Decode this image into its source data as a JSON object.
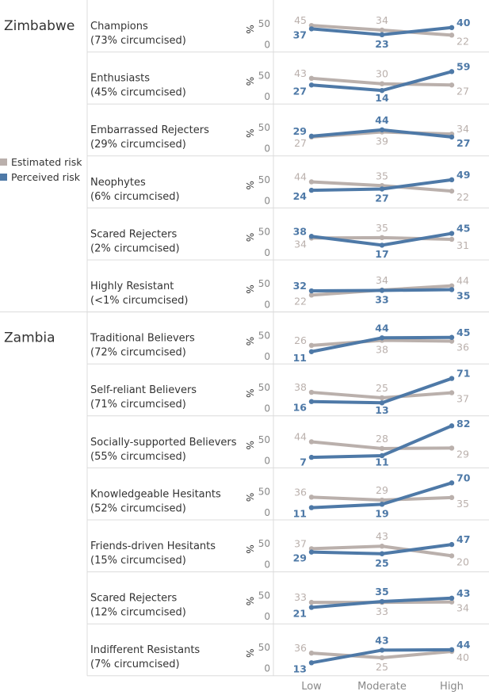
{
  "chart_data": {
    "type": "line",
    "categories": [
      "Low",
      "Moderate",
      "High"
    ],
    "ylabel": "%",
    "yticks": [
      0,
      50
    ],
    "ylim": [
      0,
      100
    ],
    "legend": {
      "position": "left",
      "items": [
        {
          "name": "Estimated risk",
          "color": "#bab0ac"
        },
        {
          "name": "Perceived risk",
          "color": "#4e79a7"
        }
      ]
    },
    "groups": [
      {
        "country": "Zimbabwe",
        "segments": [
          {
            "name": "Champions",
            "circ": "(73% circumcised)",
            "series": [
              {
                "name": "Estimated risk",
                "values": [
                  45,
                  34,
                  22
                ]
              },
              {
                "name": "Perceived risk",
                "values": [
                  37,
                  23,
                  40
                ]
              }
            ]
          },
          {
            "name": "Enthusiasts",
            "circ": "(45% circumcised)",
            "series": [
              {
                "name": "Estimated risk",
                "values": [
                  43,
                  30,
                  27
                ]
              },
              {
                "name": "Perceived risk",
                "values": [
                  27,
                  14,
                  59
                ]
              }
            ]
          },
          {
            "name": "Embarrassed Rejecters",
            "circ": "(29% circumcised)",
            "series": [
              {
                "name": "Estimated risk",
                "values": [
                  27,
                  39,
                  34
                ]
              },
              {
                "name": "Perceived risk",
                "values": [
                  29,
                  44,
                  27
                ]
              }
            ]
          },
          {
            "name": "Neophytes",
            "circ": "(6% circumcised)",
            "series": [
              {
                "name": "Estimated risk",
                "values": [
                  44,
                  35,
                  22
                ]
              },
              {
                "name": "Perceived risk",
                "values": [
                  24,
                  27,
                  49
                ]
              }
            ]
          },
          {
            "name": "Scared Rejecters",
            "circ": "(2% circumcised)",
            "series": [
              {
                "name": "Estimated risk",
                "values": [
                  34,
                  35,
                  31
                ]
              },
              {
                "name": "Perceived risk",
                "values": [
                  38,
                  17,
                  45
                ]
              }
            ]
          },
          {
            "name": "Highly Resistant",
            "circ": "(<1% circumcised)",
            "series": [
              {
                "name": "Estimated risk",
                "values": [
                  22,
                  34,
                  44
                ]
              },
              {
                "name": "Perceived risk",
                "values": [
                  32,
                  33,
                  35
                ]
              }
            ]
          }
        ]
      },
      {
        "country": "Zambia",
        "segments": [
          {
            "name": "Traditional Believers",
            "circ": "(72% circumcised)",
            "series": [
              {
                "name": "Estimated risk",
                "values": [
                  26,
                  38,
                  36
                ]
              },
              {
                "name": "Perceived risk",
                "values": [
                  11,
                  44,
                  45
                ]
              }
            ]
          },
          {
            "name": "Self-reliant Believers",
            "circ": "(71% circumcised)",
            "series": [
              {
                "name": "Estimated risk",
                "values": [
                  38,
                  25,
                  37
                ]
              },
              {
                "name": "Perceived risk",
                "values": [
                  16,
                  13,
                  71
                ]
              }
            ]
          },
          {
            "name": "Socially-supported Believers",
            "circ": "(55% circumcised)",
            "series": [
              {
                "name": "Estimated risk",
                "values": [
                  44,
                  28,
                  29
                ]
              },
              {
                "name": "Perceived risk",
                "values": [
                  7,
                  11,
                  82
                ]
              }
            ]
          },
          {
            "name": "Knowledgeable Hesitants",
            "circ": "(52% circumcised)",
            "series": [
              {
                "name": "Estimated risk",
                "values": [
                  36,
                  29,
                  35
                ]
              },
              {
                "name": "Perceived risk",
                "values": [
                  11,
                  19,
                  70
                ]
              }
            ]
          },
          {
            "name": "Friends-driven Hesitants",
            "circ": "(15% circumcised)",
            "series": [
              {
                "name": "Estimated risk",
                "values": [
                  37,
                  43,
                  20
                ]
              },
              {
                "name": "Perceived risk",
                "values": [
                  29,
                  25,
                  47
                ]
              }
            ]
          },
          {
            "name": "Scared Rejecters",
            "circ": "(12% circumcised)",
            "series": [
              {
                "name": "Estimated risk",
                "values": [
                  33,
                  33,
                  34
                ]
              },
              {
                "name": "Perceived risk",
                "values": [
                  21,
                  35,
                  43
                ]
              }
            ]
          },
          {
            "name": "Indifferent Resistants",
            "circ": "(7% circumcised)",
            "series": [
              {
                "name": "Estimated risk",
                "values": [
                  36,
                  25,
                  40
                ]
              },
              {
                "name": "Perceived risk",
                "values": [
                  13,
                  43,
                  44
                ]
              }
            ]
          }
        ]
      }
    ]
  }
}
